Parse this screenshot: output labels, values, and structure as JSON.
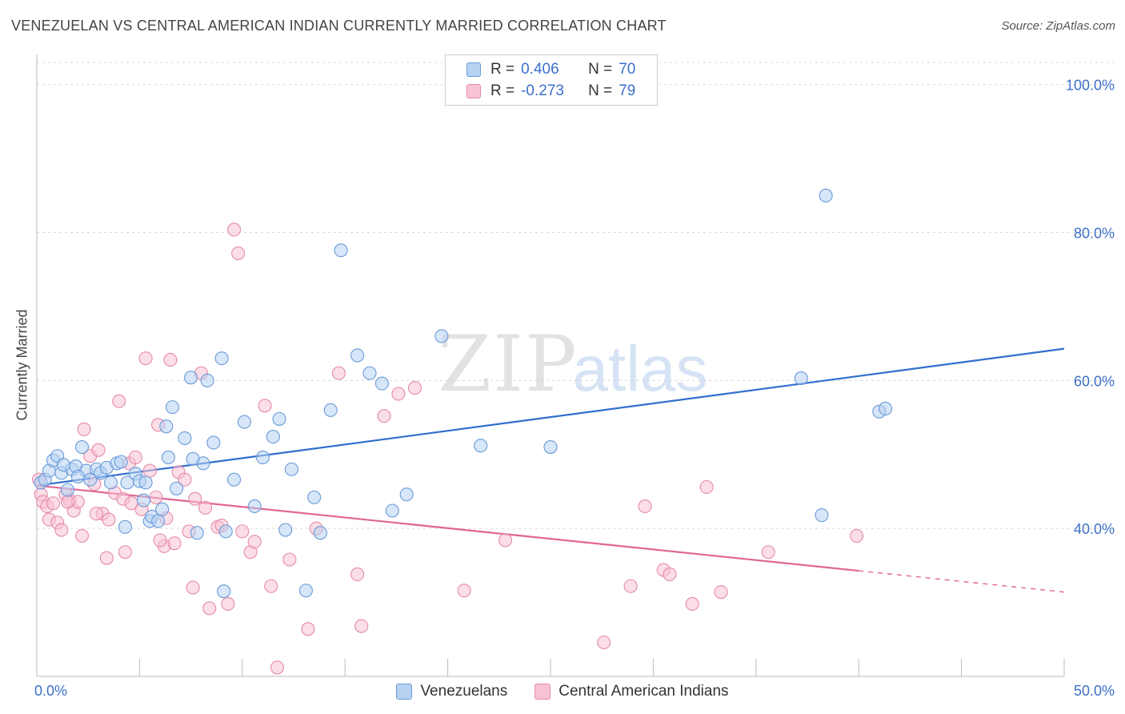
{
  "header": {
    "title": "VENEZUELAN VS CENTRAL AMERICAN INDIAN CURRENTLY MARRIED CORRELATION CHART",
    "source": "Source: ZipAtlas.com"
  },
  "watermark": {
    "zip": "ZIP",
    "atlas": "atlas"
  },
  "legend": {
    "rows": [
      {
        "r_label": "R =",
        "r_value": "0.406",
        "n_label": "N =",
        "n_value": "70"
      },
      {
        "r_label": "R =",
        "r_value": "-0.273",
        "n_label": "N =",
        "n_value": "79"
      }
    ]
  },
  "bottom_legend": {
    "series_a": "Venezuelans",
    "series_b": "Central American Indians"
  },
  "colors": {
    "blue_fill": "#b7d1f3",
    "blue_stroke": "#6a9ad8",
    "blue_line": "#2f6fcf",
    "pink_fill": "#f7c3d3",
    "pink_stroke": "#e58aa8",
    "pink_line": "#e06595",
    "tick_text": "#3d6fc9",
    "grid": "#d8d8d8"
  },
  "chart_data": {
    "type": "scatter",
    "xlabel": "",
    "ylabel": "Currently Married",
    "xlim": [
      0,
      50
    ],
    "ylim": [
      20,
      103
    ],
    "x_ticks": [
      {
        "value": 0,
        "label": "0.0%"
      },
      {
        "value": 50,
        "label": "50.0%"
      }
    ],
    "y_ticks": [
      {
        "value": 40,
        "label": "40.0%"
      },
      {
        "value": 60,
        "label": "60.0%"
      },
      {
        "value": 80,
        "label": "80.0%"
      },
      {
        "value": 100,
        "label": "100.0%"
      }
    ],
    "grid": "horizontal-dashed",
    "legend_position": "top-center",
    "series": [
      {
        "name": "Venezuelans",
        "r": 0.406,
        "n": 70,
        "trend": {
          "x0": 0,
          "y0": 45.8,
          "x1": 50,
          "y1": 64.3,
          "dashed_from": null
        },
        "points": [
          [
            0.2,
            46.2
          ],
          [
            0.4,
            46.6
          ],
          [
            0.6,
            47.8
          ],
          [
            0.8,
            49.2
          ],
          [
            1.0,
            49.8
          ],
          [
            1.2,
            47.5
          ],
          [
            1.5,
            45.2
          ],
          [
            1.7,
            48.0
          ],
          [
            1.9,
            48.4
          ],
          [
            2.2,
            51.0
          ],
          [
            2.4,
            47.8
          ],
          [
            2.6,
            46.6
          ],
          [
            2.9,
            48.0
          ],
          [
            3.1,
            47.5
          ],
          [
            3.4,
            48.2
          ],
          [
            3.6,
            46.2
          ],
          [
            3.9,
            48.8
          ],
          [
            4.1,
            49.0
          ],
          [
            4.3,
            40.2
          ],
          [
            4.4,
            46.2
          ],
          [
            4.8,
            47.4
          ],
          [
            5.0,
            46.4
          ],
          [
            5.2,
            43.8
          ],
          [
            5.3,
            46.2
          ],
          [
            5.5,
            41.0
          ],
          [
            5.6,
            41.6
          ],
          [
            5.9,
            41.0
          ],
          [
            6.1,
            42.6
          ],
          [
            6.3,
            53.8
          ],
          [
            6.4,
            49.6
          ],
          [
            6.6,
            56.4
          ],
          [
            6.8,
            45.4
          ],
          [
            7.2,
            52.2
          ],
          [
            7.5,
            60.4
          ],
          [
            7.6,
            49.4
          ],
          [
            7.8,
            39.4
          ],
          [
            8.1,
            48.8
          ],
          [
            8.3,
            60.0
          ],
          [
            8.6,
            51.6
          ],
          [
            9.0,
            63.0
          ],
          [
            9.2,
            39.6
          ],
          [
            9.6,
            46.6
          ],
          [
            10.1,
            54.4
          ],
          [
            10.6,
            43.0
          ],
          [
            11.0,
            49.6
          ],
          [
            11.5,
            52.4
          ],
          [
            11.8,
            54.8
          ],
          [
            12.1,
            39.8
          ],
          [
            12.4,
            48.0
          ],
          [
            13.1,
            31.6
          ],
          [
            13.5,
            44.2
          ],
          [
            13.8,
            39.4
          ],
          [
            14.3,
            56.0
          ],
          [
            14.8,
            77.6
          ],
          [
            15.6,
            63.4
          ],
          [
            16.2,
            61.0
          ],
          [
            16.8,
            59.6
          ],
          [
            17.3,
            42.4
          ],
          [
            18.0,
            44.6
          ],
          [
            19.7,
            66.0
          ],
          [
            21.6,
            51.2
          ],
          [
            25.0,
            51.0
          ],
          [
            9.1,
            31.5
          ],
          [
            37.2,
            60.3
          ],
          [
            38.2,
            41.8
          ],
          [
            38.4,
            85.0
          ],
          [
            41.0,
            55.8
          ],
          [
            41.3,
            56.2
          ],
          [
            1.3,
            48.6
          ],
          [
            2.0,
            47.0
          ]
        ]
      },
      {
        "name": "Central American Indians",
        "r": -0.273,
        "n": 79,
        "trend": {
          "x0": 0,
          "y0": 45.8,
          "x1": 50,
          "y1": 31.4,
          "dashed_from": 40
        },
        "points": [
          [
            0.1,
            46.6
          ],
          [
            0.2,
            44.6
          ],
          [
            0.3,
            43.6
          ],
          [
            0.5,
            43.0
          ],
          [
            0.6,
            41.2
          ],
          [
            0.8,
            43.4
          ],
          [
            1.0,
            40.8
          ],
          [
            1.2,
            39.8
          ],
          [
            1.4,
            44.6
          ],
          [
            1.6,
            43.8
          ],
          [
            1.8,
            42.4
          ],
          [
            2.0,
            43.6
          ],
          [
            2.2,
            39.0
          ],
          [
            2.3,
            53.4
          ],
          [
            2.6,
            49.8
          ],
          [
            2.8,
            46.0
          ],
          [
            3.0,
            50.6
          ],
          [
            3.2,
            42.0
          ],
          [
            3.4,
            36.0
          ],
          [
            3.5,
            41.2
          ],
          [
            3.8,
            44.8
          ],
          [
            4.0,
            57.2
          ],
          [
            4.2,
            44.0
          ],
          [
            4.3,
            36.8
          ],
          [
            4.5,
            48.8
          ],
          [
            4.8,
            49.6
          ],
          [
            5.1,
            42.6
          ],
          [
            5.3,
            63.0
          ],
          [
            5.5,
            47.8
          ],
          [
            5.8,
            44.2
          ],
          [
            5.9,
            54.0
          ],
          [
            6.2,
            37.6
          ],
          [
            6.3,
            41.4
          ],
          [
            6.5,
            62.8
          ],
          [
            6.7,
            38.0
          ],
          [
            6.9,
            47.6
          ],
          [
            7.2,
            46.6
          ],
          [
            7.4,
            39.6
          ],
          [
            7.6,
            32.0
          ],
          [
            7.7,
            44.0
          ],
          [
            8.0,
            61.0
          ],
          [
            8.2,
            42.8
          ],
          [
            8.4,
            29.2
          ],
          [
            8.8,
            40.2
          ],
          [
            9.3,
            29.8
          ],
          [
            9.6,
            80.4
          ],
          [
            9.8,
            77.2
          ],
          [
            10.0,
            39.6
          ],
          [
            10.4,
            36.8
          ],
          [
            10.6,
            38.2
          ],
          [
            11.1,
            56.6
          ],
          [
            11.4,
            32.2
          ],
          [
            11.7,
            21.2
          ],
          [
            12.3,
            35.8
          ],
          [
            13.2,
            26.4
          ],
          [
            13.6,
            40.0
          ],
          [
            14.7,
            61.0
          ],
          [
            15.6,
            33.8
          ],
          [
            15.8,
            26.8
          ],
          [
            16.9,
            55.2
          ],
          [
            17.6,
            58.2
          ],
          [
            18.4,
            59.0
          ],
          [
            20.8,
            31.6
          ],
          [
            22.8,
            38.4
          ],
          [
            27.6,
            24.6
          ],
          [
            28.9,
            32.2
          ],
          [
            29.6,
            43.0
          ],
          [
            30.5,
            34.4
          ],
          [
            30.8,
            33.8
          ],
          [
            31.9,
            29.8
          ],
          [
            32.6,
            45.6
          ],
          [
            33.3,
            31.4
          ],
          [
            35.6,
            36.8
          ],
          [
            39.9,
            39.0
          ],
          [
            1.5,
            43.6
          ],
          [
            2.9,
            42.0
          ],
          [
            4.6,
            43.4
          ],
          [
            6.0,
            38.4
          ],
          [
            9.0,
            40.4
          ]
        ]
      }
    ]
  }
}
